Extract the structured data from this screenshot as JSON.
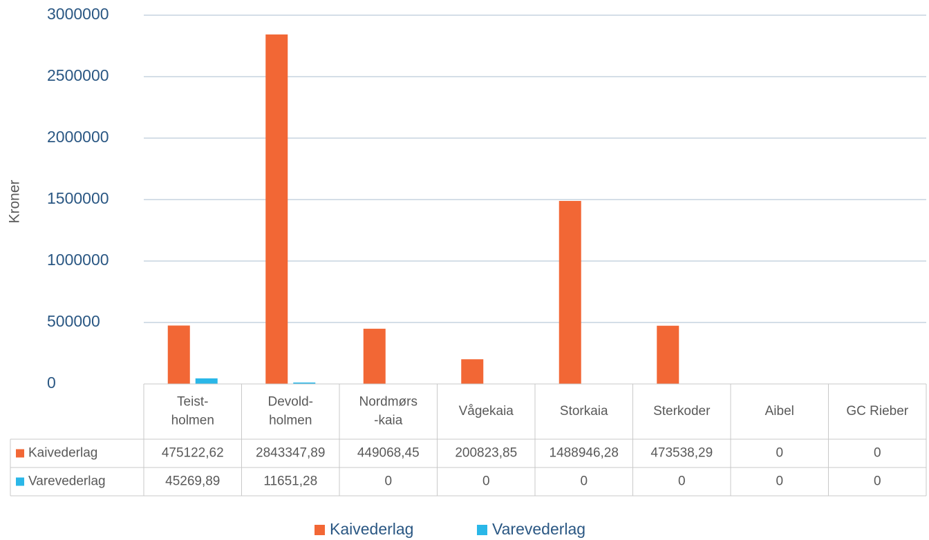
{
  "chart_data": {
    "type": "bar",
    "y_axis_label": "Kroner",
    "categories": [
      [
        "Teist-",
        "holmen"
      ],
      [
        "Devold-",
        "holmen"
      ],
      [
        "Nordmørs",
        "-kaia"
      ],
      [
        "Vågekaia"
      ],
      [
        "Storkaia"
      ],
      [
        "Sterkoder"
      ],
      [
        "Aibel"
      ],
      [
        "GC Rieber"
      ]
    ],
    "series": [
      {
        "name": "Kaivederlag",
        "color": "#f26735",
        "values": [
          475122.62,
          2843347.89,
          449068.45,
          200823.85,
          1488946.28,
          473538.29,
          0,
          0
        ],
        "value_labels": [
          "475122,62",
          "2843347,89",
          "449068,45",
          "200823,85",
          "1488946,28",
          "473538,29",
          "0",
          "0"
        ]
      },
      {
        "name": "Varevederlag",
        "color": "#2ab7e8",
        "values": [
          45269.89,
          11651.28,
          0,
          0,
          0,
          0,
          0,
          0
        ],
        "value_labels": [
          "45269,89",
          "11651,28",
          "0",
          "0",
          "0",
          "0",
          "0",
          "0"
        ]
      }
    ],
    "ylim": [
      0,
      3000000
    ],
    "yticks": [
      0,
      500000,
      1000000,
      1500000,
      2000000,
      2500000,
      3000000
    ],
    "grid": true,
    "data_table": true,
    "legend": "bottom"
  }
}
